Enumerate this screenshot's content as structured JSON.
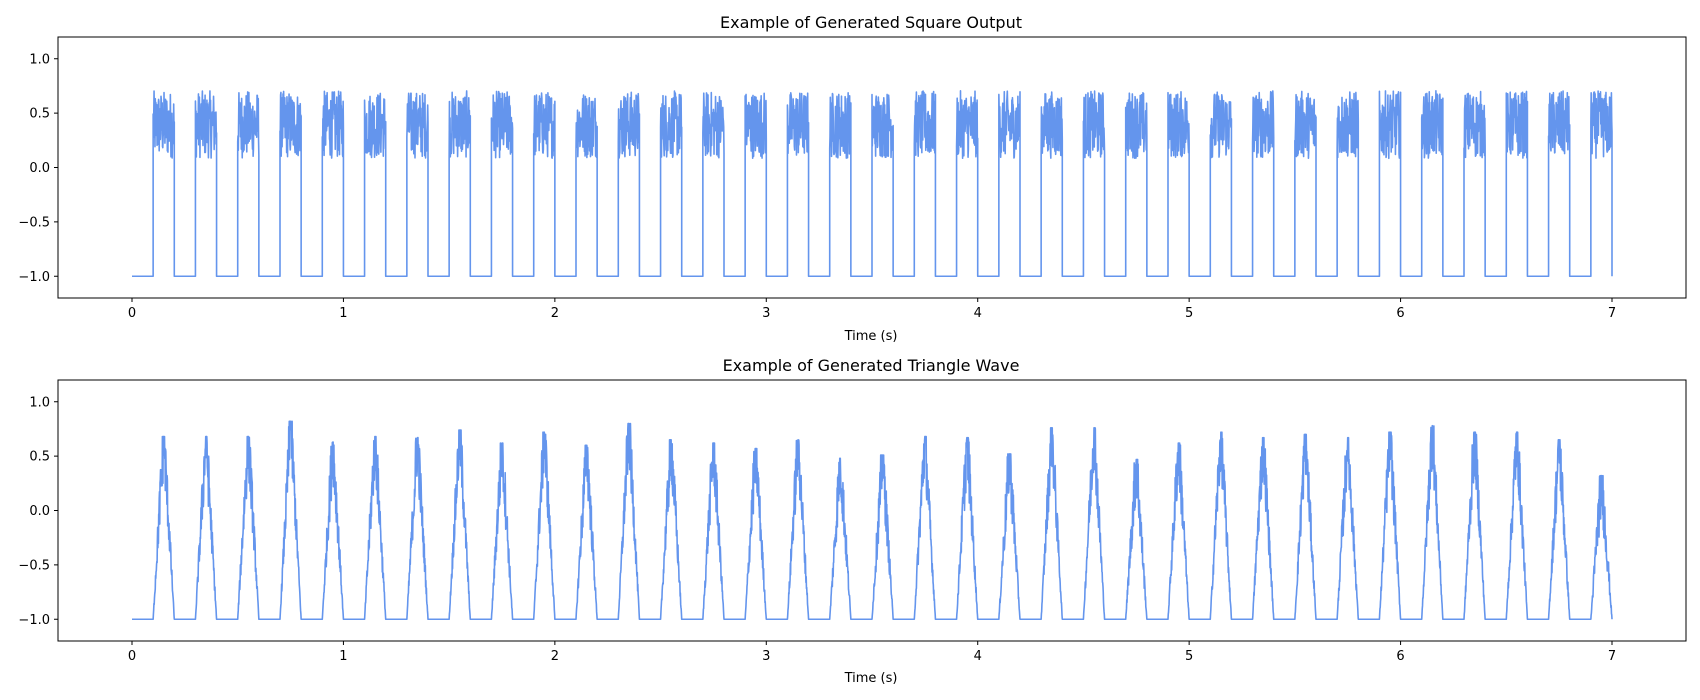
{
  "chart_data": [
    {
      "type": "line",
      "title": "Example of Generated Square Output",
      "xlabel": "Time (s)",
      "ylabel": "",
      "xlim": [
        -0.35,
        7.35
      ],
      "ylim": [
        -1.2,
        1.2
      ],
      "x_ticks": [
        0,
        1,
        2,
        3,
        4,
        5,
        6,
        7
      ],
      "x_tick_labels": [
        "0",
        "1",
        "2",
        "3",
        "4",
        "5",
        "6",
        "7"
      ],
      "y_ticks": [
        -1.0,
        -0.5,
        0.0,
        0.5,
        1.0
      ],
      "y_tick_labels": [
        "−1.0",
        "−0.5",
        "0.0",
        "0.5",
        "1.0"
      ],
      "grid": false,
      "legend": "none",
      "color": "#6495ED",
      "series": [
        {
          "waveform": "square",
          "low_level": -1.0,
          "pulse_level_range": [
            0.05,
            0.74
          ],
          "pulse_starts": [
            0.1,
            0.3,
            0.5,
            0.7,
            0.9,
            1.1,
            1.3,
            1.5,
            1.7,
            1.9,
            2.1,
            2.3,
            2.5,
            2.7,
            2.9,
            3.1,
            3.3,
            3.5,
            3.7,
            3.9,
            4.1,
            4.3,
            4.5,
            4.7,
            4.9,
            5.1,
            5.3,
            5.5,
            5.7,
            5.9,
            6.1,
            6.3,
            6.5,
            6.7,
            6.9
          ],
          "pulse_width": 0.1,
          "x_start": 0.0,
          "x_end": 7.0
        }
      ]
    },
    {
      "type": "line",
      "title": "Example of Generated Triangle Wave",
      "xlabel": "Time (s)",
      "ylabel": "",
      "xlim": [
        -0.35,
        7.35
      ],
      "ylim": [
        -1.2,
        1.2
      ],
      "x_ticks": [
        0,
        1,
        2,
        3,
        4,
        5,
        6,
        7
      ],
      "x_tick_labels": [
        "0",
        "1",
        "2",
        "3",
        "4",
        "5",
        "6",
        "7"
      ],
      "y_ticks": [
        -1.0,
        -0.5,
        0.0,
        0.5,
        1.0
      ],
      "y_tick_labels": [
        "−1.0",
        "−0.5",
        "0.0",
        "0.5",
        "1.0"
      ],
      "grid": false,
      "legend": "none",
      "color": "#6495ED",
      "series": [
        {
          "waveform": "triangle",
          "low_level": -1.0,
          "pulse_starts": [
            0.1,
            0.3,
            0.5,
            0.7,
            0.9,
            1.1,
            1.3,
            1.5,
            1.7,
            1.9,
            2.1,
            2.3,
            2.5,
            2.7,
            2.9,
            3.1,
            3.3,
            3.5,
            3.7,
            3.9,
            4.1,
            4.3,
            4.5,
            4.7,
            4.9,
            5.1,
            5.3,
            5.5,
            5.7,
            5.9,
            6.1,
            6.3,
            6.5,
            6.7,
            6.9
          ],
          "pulse_width": 0.1,
          "peak_values": [
            0.68,
            0.68,
            0.68,
            0.82,
            0.63,
            0.68,
            0.67,
            0.74,
            0.62,
            0.72,
            0.6,
            0.8,
            0.65,
            0.62,
            0.57,
            0.65,
            0.48,
            0.51,
            0.68,
            0.67,
            0.52,
            0.76,
            0.76,
            0.47,
            0.62,
            0.72,
            0.67,
            0.7,
            0.67,
            0.72,
            0.78,
            0.72,
            0.72,
            0.65,
            0.32
          ],
          "x_start": 0.0,
          "x_end": 7.0
        }
      ]
    }
  ]
}
